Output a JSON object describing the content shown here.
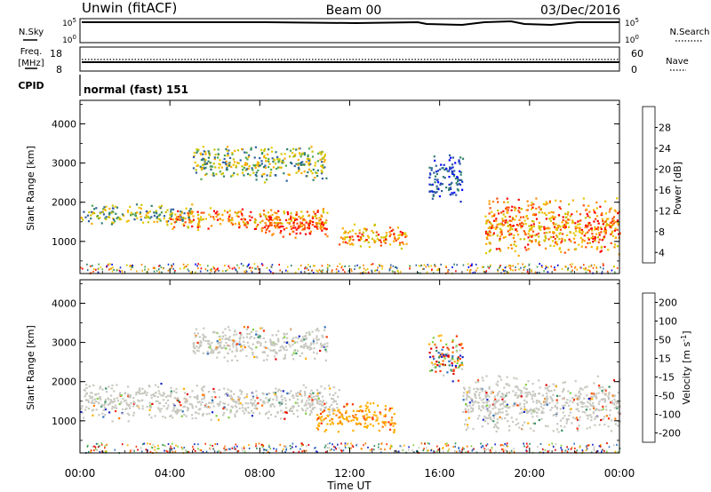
{
  "header": {
    "station": "Unwin (fitACF)",
    "beam": "Beam 00",
    "date": "03/Dec/2016"
  },
  "small_panels": {
    "nsky_label": "N.Sky",
    "nsearch_label": "N.Search",
    "freq_label": "Freq.",
    "freq_unit": "[MHz]",
    "nave_label": "Nave",
    "cpid_label": "CPID",
    "cpid_value": "normal (fast) 151",
    "noise_ticks": [
      "10^5",
      "10^0"
    ],
    "freq_ticks": [
      "18",
      "8"
    ],
    "nave_ticks": [
      "60",
      "0"
    ]
  },
  "chart_data": [
    {
      "type": "heatmap",
      "name": "Power",
      "ylabel": "Slant Range [km]",
      "ylim": [
        180,
        4600
      ],
      "yticks": [
        "1000",
        "2000",
        "3000",
        "4000"
      ],
      "xlim": [
        "00:00",
        "24:00"
      ],
      "colorbar": {
        "label": "Power [dB]",
        "ticks": [
          "28",
          "24",
          "20",
          "16",
          "12",
          "8",
          "4"
        ],
        "colors": [
          "#ff0000",
          "#ff4a00",
          "#ff8800",
          "#ffaa00",
          "#e8c800",
          "#c8c400",
          "#4fa84f",
          "#2f7f6f",
          "#2f5fa0",
          "#1b2fc8",
          "#0000ff"
        ]
      },
      "echo_regions": [
        {
          "t": [
            0.0,
            5.0
          ],
          "range": [
            1400,
            2000
          ],
          "level": "mid"
        },
        {
          "t": [
            4.0,
            11.0
          ],
          "range": [
            1300,
            1900
          ],
          "level": "high"
        },
        {
          "t": [
            8.0,
            11.0
          ],
          "range": [
            1100,
            1700
          ],
          "level": "very_high"
        },
        {
          "t": [
            5.0,
            11.0
          ],
          "range": [
            2500,
            3500
          ],
          "level": "mid"
        },
        {
          "t": [
            11.5,
            14.5
          ],
          "range": [
            800,
            1500
          ],
          "level": "high"
        },
        {
          "t": [
            15.5,
            17.0
          ],
          "range": [
            2000,
            3300
          ],
          "level": "low"
        },
        {
          "t": [
            18.0,
            24.0
          ],
          "range": [
            600,
            2200
          ],
          "level": "high"
        }
      ]
    },
    {
      "type": "heatmap",
      "name": "Velocity",
      "ylabel": "Slant Range [km]",
      "ylim": [
        180,
        4600
      ],
      "yticks": [
        "1000",
        "2000",
        "3000",
        "4000"
      ],
      "xlim": [
        "00:00",
        "24:00"
      ],
      "colorbar": {
        "label": "Velocity [m s^-1]",
        "ticks": [
          "200",
          "100",
          "50",
          "15",
          "-15",
          "-50",
          "-100",
          "-200"
        ],
        "colors": [
          "#1a28c8",
          "#2f6fbf",
          "#2f8f5f",
          "#7fcf3f",
          "#c8c8c0",
          "#ffb000",
          "#ff7a00",
          "#ff3000",
          "#e00000"
        ]
      },
      "echo_regions": [
        {
          "t": [
            0.0,
            11.5
          ],
          "range": [
            1000,
            2000
          ],
          "level": "ground_scatter"
        },
        {
          "t": [
            5.0,
            11.0
          ],
          "range": [
            2500,
            3500
          ],
          "level": "ground_scatter"
        },
        {
          "t": [
            10.5,
            14.0
          ],
          "range": [
            700,
            1500
          ],
          "level": "negative"
        },
        {
          "t": [
            15.5,
            17.0
          ],
          "range": [
            2000,
            3300
          ],
          "level": "mixed"
        },
        {
          "t": [
            17.0,
            24.0
          ],
          "range": [
            700,
            2200
          ],
          "level": "ground_scatter"
        }
      ]
    }
  ],
  "time_axis": {
    "label": "Time UT",
    "ticks": [
      "00:00",
      "04:00",
      "08:00",
      "12:00",
      "16:00",
      "20:00",
      "00:00"
    ]
  }
}
